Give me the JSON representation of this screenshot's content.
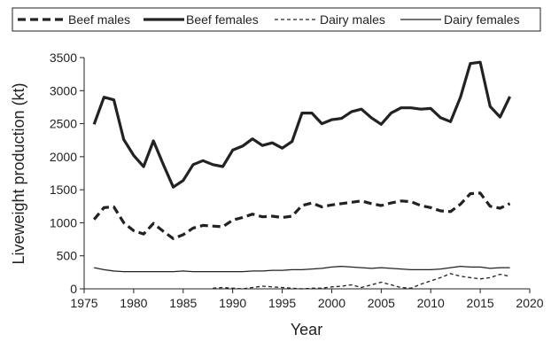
{
  "chart_data": {
    "type": "line",
    "xlabel": "Year",
    "ylabel": "Liveweight production (kt)",
    "xlim": [
      1975,
      2020
    ],
    "ylim": [
      0,
      3500
    ],
    "xticks": [
      1975,
      1980,
      1985,
      1990,
      1995,
      2000,
      2005,
      2010,
      2015,
      2020
    ],
    "yticks": [
      0,
      500,
      1000,
      1500,
      2000,
      2500,
      3000,
      3500
    ],
    "grid": false,
    "legend_position": "top",
    "series": [
      {
        "name": "Beef males",
        "style": "thick-dashed",
        "x": [
          1976,
          1977,
          1978,
          1979,
          1980,
          1981,
          1982,
          1983,
          1984,
          1985,
          1986,
          1987,
          1988,
          1989,
          1990,
          1991,
          1992,
          1993,
          1994,
          1995,
          1996,
          1997,
          1998,
          1999,
          2000,
          2001,
          2002,
          2003,
          2004,
          2005,
          2006,
          2007,
          2008,
          2009,
          2010,
          2011,
          2012,
          2013,
          2014,
          2015,
          2016,
          2017,
          2018
        ],
        "values": [
          1050,
          1230,
          1240,
          1000,
          880,
          830,
          990,
          870,
          760,
          820,
          920,
          960,
          950,
          940,
          1040,
          1080,
          1130,
          1090,
          1100,
          1080,
          1100,
          1260,
          1300,
          1240,
          1270,
          1290,
          1310,
          1330,
          1290,
          1260,
          1300,
          1330,
          1320,
          1260,
          1230,
          1180,
          1170,
          1280,
          1440,
          1450,
          1250,
          1220,
          1290
        ]
      },
      {
        "name": "Beef females",
        "style": "thick-solid",
        "x": [
          1976,
          1977,
          1978,
          1979,
          1980,
          1981,
          1982,
          1983,
          1984,
          1985,
          1986,
          1987,
          1988,
          1989,
          1990,
          1991,
          1992,
          1993,
          1994,
          1995,
          1996,
          1997,
          1998,
          1999,
          2000,
          2001,
          2002,
          2003,
          2004,
          2005,
          2006,
          2007,
          2008,
          2009,
          2010,
          2011,
          2012,
          2013,
          2014,
          2015,
          2016,
          2017,
          2018
        ],
        "values": [
          2490,
          2900,
          2860,
          2260,
          2020,
          1850,
          2240,
          1880,
          1540,
          1640,
          1880,
          1940,
          1880,
          1850,
          2100,
          2160,
          2270,
          2170,
          2210,
          2130,
          2230,
          2660,
          2660,
          2500,
          2560,
          2580,
          2680,
          2720,
          2590,
          2490,
          2660,
          2740,
          2740,
          2720,
          2730,
          2590,
          2530,
          2900,
          3410,
          3430,
          2760,
          2600,
          2910
        ]
      },
      {
        "name": "Dairy males",
        "style": "thin-dashed",
        "x": [
          1988,
          1989,
          1990,
          1991,
          1992,
          1993,
          1994,
          1995,
          1996,
          1997,
          1998,
          1999,
          2000,
          2001,
          2002,
          2003,
          2004,
          2005,
          2006,
          2007,
          2008,
          2009,
          2010,
          2011,
          2012,
          2013,
          2014,
          2015,
          2016,
          2017,
          2018
        ],
        "values": [
          10,
          20,
          10,
          0,
          20,
          40,
          30,
          20,
          10,
          0,
          10,
          10,
          30,
          40,
          60,
          20,
          60,
          100,
          60,
          20,
          10,
          70,
          120,
          170,
          230,
          190,
          170,
          150,
          170,
          220,
          190
        ]
      },
      {
        "name": "Dairy females",
        "style": "thin-solid",
        "x": [
          1976,
          1977,
          1978,
          1979,
          1980,
          1981,
          1982,
          1983,
          1984,
          1985,
          1986,
          1987,
          1988,
          1989,
          1990,
          1991,
          1992,
          1993,
          1994,
          1995,
          1996,
          1997,
          1998,
          1999,
          2000,
          2001,
          2002,
          2003,
          2004,
          2005,
          2006,
          2007,
          2008,
          2009,
          2010,
          2011,
          2012,
          2013,
          2014,
          2015,
          2016,
          2017,
          2018
        ],
        "values": [
          320,
          290,
          270,
          260,
          260,
          260,
          260,
          260,
          260,
          270,
          260,
          260,
          260,
          260,
          260,
          260,
          270,
          270,
          280,
          280,
          290,
          290,
          300,
          310,
          330,
          340,
          330,
          320,
          310,
          320,
          310,
          300,
          290,
          290,
          290,
          300,
          320,
          340,
          330,
          330,
          310,
          320,
          320
        ]
      }
    ]
  }
}
